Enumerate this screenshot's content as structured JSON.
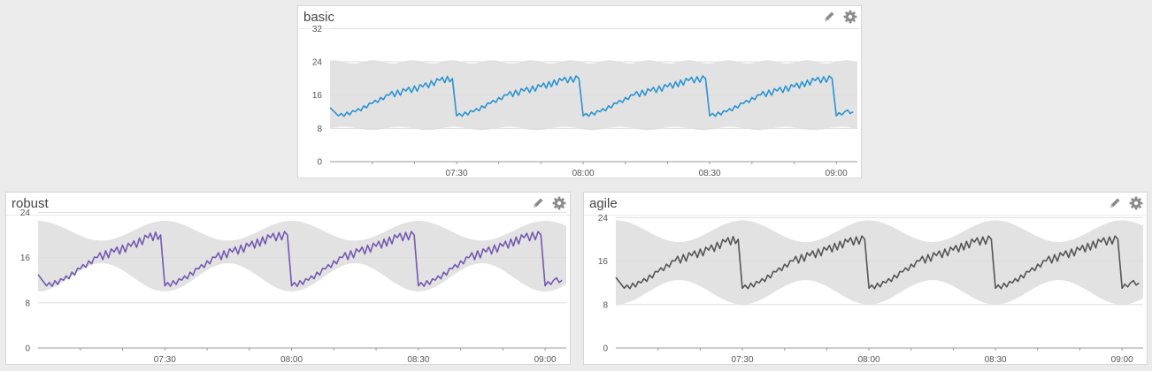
{
  "colors": {
    "band": "#e2e2e2",
    "grid": "#dddddd",
    "axis": "#666666",
    "icon": "#8a8a8a"
  },
  "panels": [
    {
      "title": "basic",
      "series_color": "#2b93d1",
      "icons": [
        "pencil-icon",
        "gear-icon"
      ]
    },
    {
      "title": "robust",
      "series_color": "#7359b0",
      "icons": [
        "pencil-icon",
        "gear-icon"
      ]
    },
    {
      "title": "agile",
      "series_color": "#555555",
      "icons": [
        "pencil-icon",
        "gear-icon"
      ]
    }
  ],
  "chart_data": [
    {
      "type": "area",
      "title": "basic",
      "x_axis": {
        "time_range": [
          "07:00",
          "09:05"
        ],
        "tick_labels": [
          "07:30",
          "08:00",
          "08:30",
          "09:00"
        ]
      },
      "y_axis": {
        "range": [
          0,
          34
        ],
        "tick_labels": [
          "0",
          "8",
          "16",
          "24",
          "32"
        ]
      },
      "band": {
        "lower": 8,
        "upper": 24
      },
      "series": [
        {
          "x": [
            "07:00",
            "07:02",
            "07:06",
            "07:10",
            "07:14",
            "07:18",
            "07:22",
            "07:26",
            "07:29",
            "07:30",
            "07:34",
            "07:38",
            "07:42",
            "07:46",
            "07:50",
            "07:55",
            "07:59",
            "08:00",
            "08:04",
            "08:08",
            "08:12",
            "08:16",
            "08:20",
            "08:25",
            "08:29",
            "08:30",
            "08:34",
            "08:38",
            "08:42",
            "08:46",
            "08:50",
            "08:55",
            "08:59",
            "09:00",
            "09:02",
            "09:04"
          ],
          "y": [
            13,
            11,
            12,
            14,
            16,
            17,
            18,
            19.5,
            20,
            11,
            12,
            14,
            16,
            17,
            18,
            19.5,
            20,
            11,
            12,
            14,
            16,
            17,
            18,
            19.5,
            20,
            11,
            12,
            14,
            16,
            17,
            18,
            19.5,
            20,
            11,
            12,
            12
          ]
        }
      ]
    },
    {
      "type": "area",
      "title": "robust",
      "x_axis": {
        "time_range": [
          "07:00",
          "09:05"
        ],
        "tick_labels": [
          "07:30",
          "08:00",
          "08:30",
          "09:00"
        ]
      },
      "y_axis": {
        "range": [
          0,
          25
        ],
        "tick_labels": [
          "0",
          "8",
          "16",
          "24"
        ]
      },
      "band": {
        "shape": "sinusoidal",
        "lower_range": [
          10,
          15
        ],
        "upper_range": [
          19,
          22.5
        ]
      },
      "series": [
        {
          "x": [
            "07:00",
            "07:02",
            "07:06",
            "07:10",
            "07:14",
            "07:18",
            "07:22",
            "07:26",
            "07:29",
            "07:30",
            "07:34",
            "07:38",
            "07:42",
            "07:46",
            "07:50",
            "07:55",
            "07:59",
            "08:00",
            "08:04",
            "08:08",
            "08:12",
            "08:16",
            "08:20",
            "08:25",
            "08:29",
            "08:30",
            "08:34",
            "08:38",
            "08:42",
            "08:46",
            "08:50",
            "08:55",
            "08:59",
            "09:00",
            "09:02",
            "09:04"
          ],
          "y": [
            13,
            11,
            12,
            14,
            16,
            17,
            18,
            19.5,
            20,
            11,
            12,
            14,
            16,
            17,
            18,
            19.5,
            20,
            11,
            12,
            14,
            16,
            17,
            18,
            19.5,
            20,
            11,
            12,
            14,
            16,
            17,
            18,
            19.5,
            20,
            11,
            12,
            12
          ]
        }
      ]
    },
    {
      "type": "area",
      "title": "agile",
      "x_axis": {
        "time_range": [
          "07:00",
          "09:05"
        ],
        "tick_labels": [
          "07:30",
          "08:00",
          "08:30",
          "09:00"
        ]
      },
      "y_axis": {
        "range": [
          0,
          26
        ],
        "tick_labels": [
          "0",
          "8",
          "16",
          "24"
        ]
      },
      "band": {
        "shape": "sinusoidal",
        "lower_range": [
          8,
          12.5
        ],
        "upper_range": [
          19.5,
          23.5
        ]
      },
      "series": [
        {
          "x": [
            "07:00",
            "07:02",
            "07:06",
            "07:10",
            "07:14",
            "07:18",
            "07:22",
            "07:26",
            "07:29",
            "07:30",
            "07:34",
            "07:38",
            "07:42",
            "07:46",
            "07:50",
            "07:55",
            "07:59",
            "08:00",
            "08:04",
            "08:08",
            "08:12",
            "08:16",
            "08:20",
            "08:25",
            "08:29",
            "08:30",
            "08:34",
            "08:38",
            "08:42",
            "08:46",
            "08:50",
            "08:55",
            "08:59",
            "09:00",
            "09:02",
            "09:04"
          ],
          "y": [
            13,
            11,
            12,
            14,
            16,
            17,
            18,
            19.5,
            20,
            11,
            12,
            14,
            16,
            17,
            18,
            19.5,
            20,
            11,
            12,
            14,
            16,
            17,
            18,
            19.5,
            20,
            11,
            12,
            14,
            16,
            17,
            18,
            19.5,
            20,
            11,
            12,
            12
          ]
        }
      ]
    }
  ]
}
